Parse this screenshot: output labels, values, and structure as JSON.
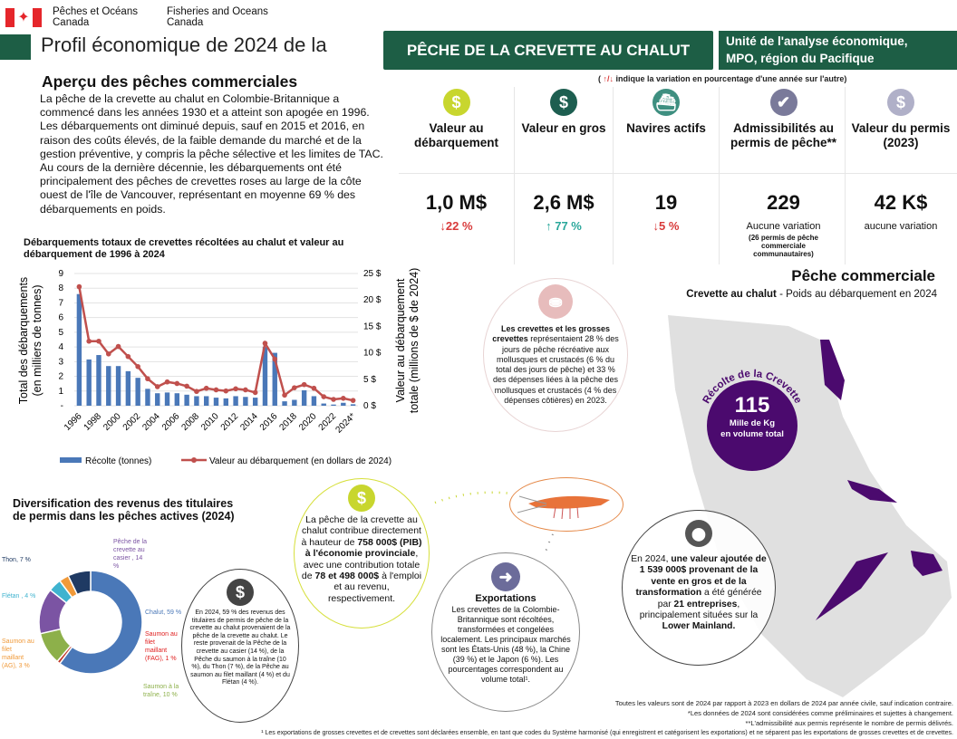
{
  "header": {
    "org_fr_1": "Pêches et Océans",
    "org_fr_2": "Canada",
    "org_en_1": "Fisheries and Oceans",
    "org_en_2": "Canada",
    "title": "Profil économique de 2024 de la",
    "fishery": "PÊCHE DE LA CREVETTE AU CHALUT",
    "unit_1": "Unité de l'analyse économique,",
    "unit_2": "MPO, région du Pacifique",
    "legend_note": "indique la variation en pourcentage d'une année sur l'autre)",
    "legend_open": "(",
    "legend_arrows": "↑/↓"
  },
  "overview": {
    "title": "Aperçu des pêches commerciales",
    "text": "La pêche de la crevette au chalut en Colombie-Britannique a commencé dans les années 1930 et a atteint son apogée en 1996. Les débarquements ont diminué depuis, sauf en 2015 et 2016, en raison des coûts élevés, de la faible demande du marché et de la gestion préventive, y compris la pêche sélective et les limites de TAC. Au cours de la dernière décennie, les débarquements ont été principalement des pêches de crevettes roses au large de la côte ouest de l'île de Vancouver, représentant en moyenne 69 % des débarquements en poids."
  },
  "kpis": [
    {
      "label": "Valeur au débarquement",
      "value": "1,0 M$",
      "change": "↓22 %",
      "icon": "dollar-icon",
      "color": "#c8d62e",
      "direction": "down"
    },
    {
      "label": "Valeur en gros",
      "value": "2,6 M$",
      "change": "↑ 77 %",
      "icon": "dollar-icon",
      "color": "#1d5e50",
      "direction": "up"
    },
    {
      "label": "Navires actifs",
      "value": "19",
      "change": "↓5 %",
      "icon": "boat-icon",
      "color": "#3e8f80",
      "direction": "down"
    },
    {
      "label": "Admissibilités au permis de pêche**",
      "value": "229",
      "change": "Aucune variation",
      "sub": "(26 permis de pêche commerciale communautaires)",
      "icon": "check-icon",
      "color": "#7a7a9a"
    },
    {
      "label": "Valeur du permis (2023)",
      "value": "42 K$",
      "change": "aucune variation",
      "icon": "dollar-icon",
      "color": "#b0b0c8"
    }
  ],
  "colors": {
    "up": "#2aa79b",
    "down": "#d83a3a",
    "purple": "#4b0a6e",
    "green": "#1d5e45"
  },
  "chart_data": {
    "type": "bar+line",
    "title": "Débarquements totaux de crevettes récoltées au chalut et valeur au débarquement de 1996 à 2024",
    "ylabel": "Total des débarquements (en milliers de tonnes)",
    "y2label": "Valeur au débarquement totale (millions de $ de 2024)",
    "ylim": [
      0,
      9
    ],
    "y2lim": [
      0,
      25
    ],
    "yticks": [
      "-",
      "1",
      "2",
      "3",
      "4",
      "5",
      "6",
      "7",
      "8",
      "9"
    ],
    "y2ticks": [
      "0 $",
      "5 $",
      "10 $",
      "15 $",
      "20 $",
      "25 $"
    ],
    "categories": [
      "1996",
      "1997",
      "1998",
      "1999",
      "2000",
      "2001",
      "2002",
      "2003",
      "2004",
      "2005",
      "2006",
      "2007",
      "2008",
      "2009",
      "2010",
      "2011",
      "2012",
      "2013",
      "2014",
      "2015",
      "2016",
      "2017",
      "2018",
      "2019",
      "2020",
      "2021",
      "2022",
      "2023",
      "2024*"
    ],
    "xticks": [
      "1996",
      "1998",
      "2000",
      "2002",
      "2004",
      "2006",
      "2008",
      "2010",
      "2012",
      "2014",
      "2016",
      "2018",
      "2020",
      "2022",
      "2024*"
    ],
    "series": [
      {
        "name": "Récolte (tonnes)",
        "type": "bar",
        "color": "#4a78b8",
        "values": [
          7.6,
          3.15,
          3.45,
          2.7,
          2.7,
          2.35,
          1.9,
          1.15,
          0.85,
          0.9,
          0.85,
          0.75,
          0.65,
          0.65,
          0.55,
          0.5,
          0.65,
          0.6,
          0.55,
          4.0,
          3.6,
          0.3,
          0.4,
          1.05,
          0.65,
          0.15,
          0.08,
          0.2,
          0.1
        ]
      },
      {
        "name": "Valeur au débarquement (en dollars de 2024)",
        "type": "line",
        "axis": "right",
        "color": "#c0504d",
        "values": [
          22.5,
          12.2,
          12.2,
          9.8,
          11.2,
          9.3,
          7.4,
          5.1,
          3.6,
          4.5,
          4.2,
          3.7,
          2.7,
          3.3,
          3.0,
          2.8,
          3.2,
          3.0,
          2.5,
          11.8,
          8.8,
          2.0,
          3.4,
          4.0,
          3.3,
          1.7,
          1.2,
          1.4,
          1.0
        ]
      }
    ]
  },
  "donut": {
    "title_1": "Diversification des revenus des titulaires",
    "title_2": "de permis dans les pêches actives (2024)",
    "slices": [
      {
        "label": "Chalut, 59 %",
        "value": 59,
        "color": "#4a78b8"
      },
      {
        "label": "Saumon au filet maillant (FAG), 1 %",
        "value": 1,
        "color": "#c0392b"
      },
      {
        "label": "Saumon à la traîne, 10 %",
        "value": 10,
        "color": "#8db04a"
      },
      {
        "label": "Pêche de la crevette au casier , 14 %",
        "value": 14,
        "color": "#7b54a3"
      },
      {
        "label": "Flétan , 4 %",
        "value": 4,
        "color": "#3fb3cf"
      },
      {
        "label": "Saumon au filet maillant (AG), 3 %",
        "value": 3,
        "color": "#f09a3a"
      },
      {
        "label": "Thon, 7 %",
        "value": 7,
        "color": "#1f3a63"
      }
    ]
  },
  "bubbles": {
    "revenue": "En 2024, 59 % des revenus des titulaires de permis de pêche de la crevette au chalut provenaient de la pêche de la crevette au chalut. Le reste provenait de la Pêche de la crevette au casier (14 %), de la Pêche du saumon à la traîne (10 %), du Thon (7 %), de la Pêche au saumon au filet maillant (4 %) et du Flétan (4 %).",
    "gdp_1": "La pêche de la crevette au chalut contribue directement à hauteur de ",
    "gdp_b1": "758 000$ (PIB) à l'économie provinciale",
    "gdp_2": ", avec une contribution totale de ",
    "gdp_b2": "78 et 498 000$",
    "gdp_3": " à l'emploi et au revenu, respectivement.",
    "exports_title": "Exportations",
    "exports": "Les crevettes de la Colombie-Britannique sont récoltées, transformées et congelées localement. Les principaux marchés sont les États-Unis (48 %), la Chine (39 %) et le Japon (6 %). Les pourcentages correspondent au volume total¹.",
    "rec_b": "Les crevettes et les grosses crevettes",
    "rec": " représentaient 28 % des jours de pêche récréative aux mollusques et crustacés (6 % du total des jours de pêche) et 33 % des dépenses liées à la pêche des mollusques et crustacés (4 % des dépenses côtières) en 2023.",
    "va_1": "En 2024, ",
    "va_b1": "une valeur ajoutée de 1 539 000$ provenant de la vente en gros et de la transformation",
    "va_2": " a été générée par ",
    "va_b2": "21 entreprises",
    "va_3": ", principalement situées sur la ",
    "va_b3": "Lower Mainland."
  },
  "map": {
    "title": "Pêche commerciale",
    "subtitle_b": "Crevette au chalut",
    "subtitle": " - Poids au débarquement en 2024",
    "arc": "Récolte de la Crevette",
    "value": "115",
    "unit_1": "Mille de Kg",
    "unit_2": "en volume total"
  },
  "footnotes": [
    "Toutes les valeurs sont de 2024 par rapport à 2023 en dollars de 2024 par année civile, sauf indication contraire.",
    "*Les données de 2024 sont considérées comme préliminaires et sujettes à changement.",
    "**L'admissibilité aux permis représente le nombre de permis délivrés.",
    "¹ Les exportations de grosses crevettes et de crevettes sont déclarées ensemble, en tant que codes du Système harmonisé (qui enregistrent et catégorisent les exportations) et ne séparent pas les exportations de grosses crevettes et de crevettes."
  ]
}
